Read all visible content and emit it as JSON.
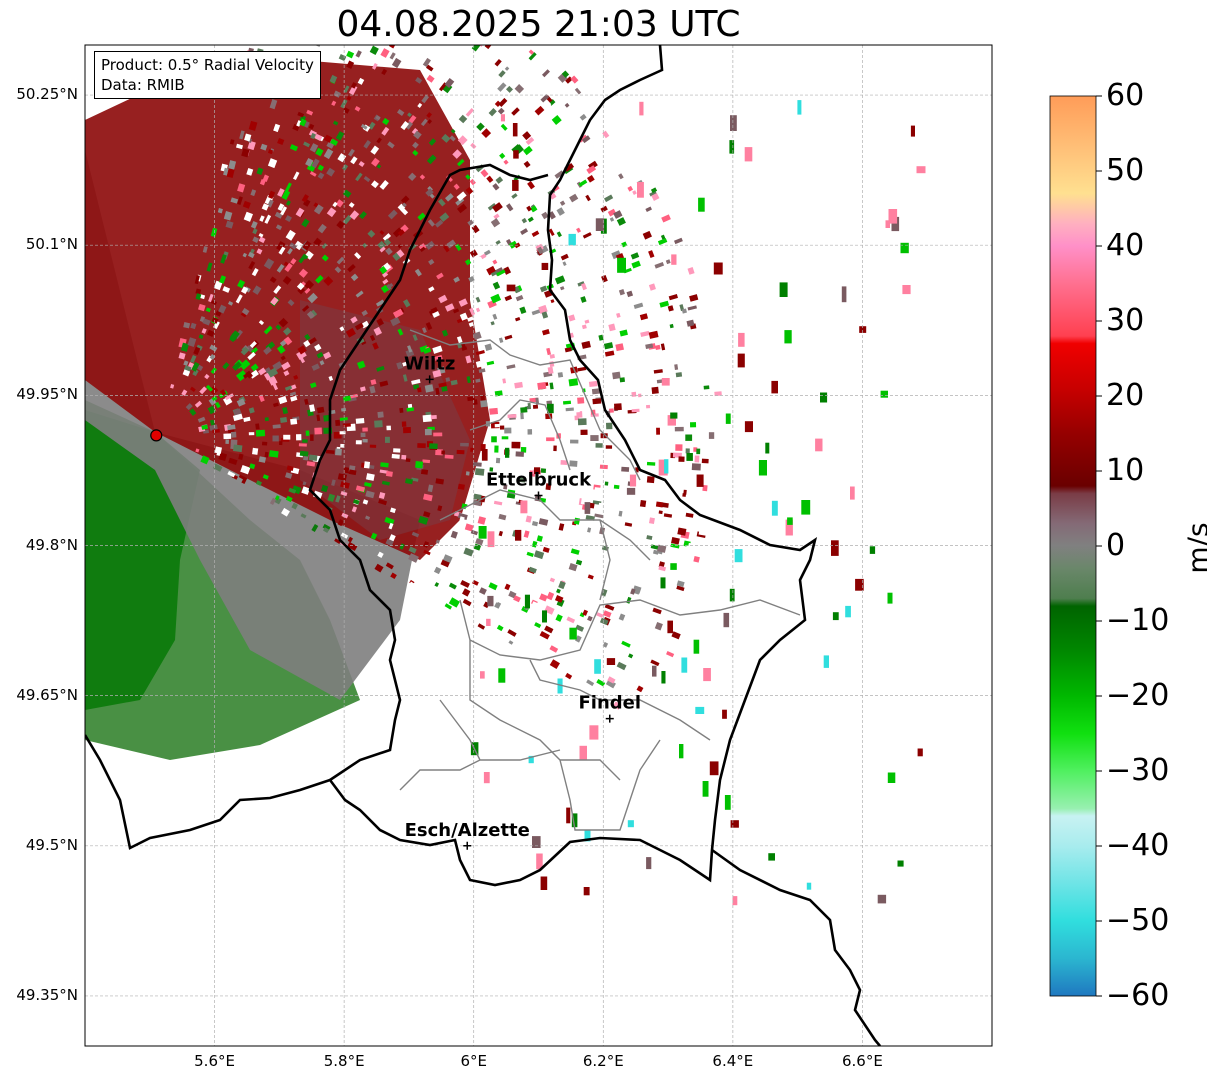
{
  "title": "04.08.2025 21:03 UTC",
  "info_box": {
    "line1": "Product: 0.5° Radial Velocity",
    "line2": "Data: RMIB"
  },
  "map": {
    "lat_range": [
      49.3,
      50.3
    ],
    "lon_range": [
      5.4,
      6.8
    ],
    "lat_ticks": [
      {
        "value": 50.25,
        "label": "50.25°N"
      },
      {
        "value": 50.1,
        "label": "50.1°N"
      },
      {
        "value": 49.95,
        "label": "49.95°N"
      },
      {
        "value": 49.8,
        "label": "49.8°N"
      },
      {
        "value": 49.65,
        "label": "49.65°N"
      },
      {
        "value": 49.5,
        "label": "49.5°N"
      },
      {
        "value": 49.35,
        "label": "49.35°N"
      }
    ],
    "lon_ticks": [
      {
        "value": 5.6,
        "label": "5.6°E"
      },
      {
        "value": 5.8,
        "label": "5.8°E"
      },
      {
        "value": 6.0,
        "label": "6°E"
      },
      {
        "value": 6.2,
        "label": "6.2°E"
      },
      {
        "value": 6.4,
        "label": "6.4°E"
      },
      {
        "value": 6.6,
        "label": "6.6°E"
      }
    ],
    "radar_site": {
      "lat": 49.91,
      "lon": 5.51
    },
    "places": [
      {
        "name": "Wiltz",
        "lat": 49.966,
        "lon": 5.932
      },
      {
        "name": "Ettelbruck",
        "lat": 49.85,
        "lon": 6.1
      },
      {
        "name": "Findel",
        "lat": 49.627,
        "lon": 6.21
      },
      {
        "name": "Esch/Alzette",
        "lat": 49.5,
        "lon": 5.99
      }
    ]
  },
  "colorbar": {
    "label": "m/s",
    "min": -60,
    "max": 60,
    "ticks": [
      {
        "value": 60,
        "label": "60"
      },
      {
        "value": 50,
        "label": "50"
      },
      {
        "value": 40,
        "label": "40"
      },
      {
        "value": 30,
        "label": "30"
      },
      {
        "value": 20,
        "label": "20"
      },
      {
        "value": 10,
        "label": "10"
      },
      {
        "value": 0,
        "label": "0"
      },
      {
        "value": -10,
        "label": "−10"
      },
      {
        "value": -20,
        "label": "−20"
      },
      {
        "value": -30,
        "label": "−30"
      },
      {
        "value": -40,
        "label": "−40"
      },
      {
        "value": -50,
        "label": "−50"
      },
      {
        "value": -60,
        "label": "−60"
      }
    ],
    "stops": [
      {
        "value": -60,
        "color": "#1f78c0"
      },
      {
        "value": -55,
        "color": "#2bb6d0"
      },
      {
        "value": -50,
        "color": "#30dede"
      },
      {
        "value": -45,
        "color": "#6ee4e6"
      },
      {
        "value": -40,
        "color": "#a8ecee"
      },
      {
        "value": -36,
        "color": "#c8f2f2"
      },
      {
        "value": -35,
        "color": "#98f0b0"
      },
      {
        "value": -30,
        "color": "#50f060"
      },
      {
        "value": -25,
        "color": "#10e010"
      },
      {
        "value": -20,
        "color": "#00b800"
      },
      {
        "value": -14,
        "color": "#008800"
      },
      {
        "value": -8,
        "color": "#006400"
      },
      {
        "value": -7,
        "color": "#4e7e4e"
      },
      {
        "value": -3,
        "color": "#6a876a"
      },
      {
        "value": 0,
        "color": "#808080"
      },
      {
        "value": 3,
        "color": "#846a76"
      },
      {
        "value": 7,
        "color": "#7a3c46"
      },
      {
        "value": 8,
        "color": "#6a0000"
      },
      {
        "value": 15,
        "color": "#960000"
      },
      {
        "value": 21,
        "color": "#c80000"
      },
      {
        "value": 27,
        "color": "#f00000"
      },
      {
        "value": 28,
        "color": "#ff4050"
      },
      {
        "value": 35,
        "color": "#ff7090"
      },
      {
        "value": 40,
        "color": "#ff90c8"
      },
      {
        "value": 43,
        "color": "#ffb0c0"
      },
      {
        "value": 47,
        "color": "#ffe090"
      },
      {
        "value": 53,
        "color": "#ffc078"
      },
      {
        "value": 60,
        "color": "#ff9c58"
      }
    ]
  }
}
